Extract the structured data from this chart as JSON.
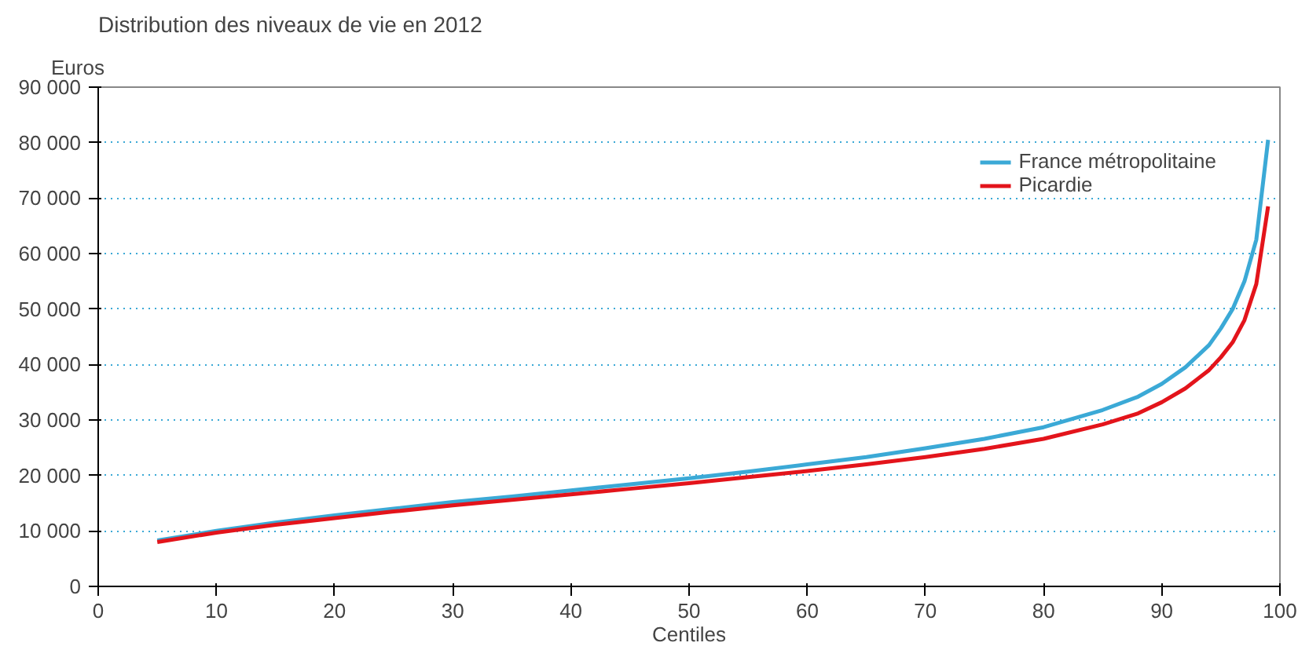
{
  "chart_data": {
    "type": "line",
    "title": "Distribution des niveaux de vie en 2012",
    "xlabel": "Centiles",
    "ylabel": "Euros",
    "x": [
      5,
      10,
      15,
      20,
      25,
      30,
      35,
      40,
      45,
      50,
      55,
      60,
      65,
      70,
      75,
      80,
      85,
      88,
      90,
      92,
      94,
      95,
      96,
      97,
      98,
      99
    ],
    "series": [
      {
        "name": "France métropolitaine",
        "color": "#3ba9d6",
        "values": [
          8300,
          10000,
          11500,
          12800,
          14000,
          15200,
          16200,
          17300,
          18400,
          19500,
          20700,
          22000,
          23300,
          24900,
          26600,
          28700,
          31800,
          34200,
          36500,
          39500,
          43500,
          46500,
          50000,
          55000,
          62500,
          80500
        ]
      },
      {
        "name": "Picardie",
        "color": "#e3141b",
        "values": [
          8000,
          9700,
          11100,
          12300,
          13500,
          14600,
          15600,
          16600,
          17600,
          18600,
          19700,
          20800,
          22000,
          23300,
          24800,
          26600,
          29200,
          31200,
          33200,
          35700,
          39000,
          41300,
          44000,
          48000,
          54500,
          68500
        ]
      }
    ],
    "xlim": [
      0,
      100
    ],
    "xticks": [
      0,
      10,
      20,
      30,
      40,
      50,
      60,
      70,
      80,
      90,
      100
    ],
    "ylim": [
      0,
      90000
    ],
    "yticks": [
      {
        "value": 0,
        "label": "0"
      },
      {
        "value": 10000,
        "label": "10 000"
      },
      {
        "value": 20000,
        "label": "20 000"
      },
      {
        "value": 30000,
        "label": "30 000"
      },
      {
        "value": 40000,
        "label": "40 000"
      },
      {
        "value": 50000,
        "label": "50 000"
      },
      {
        "value": 60000,
        "label": "60 000"
      },
      {
        "value": 70000,
        "label": "70 000"
      },
      {
        "value": 80000,
        "label": "80 000"
      },
      {
        "value": 90000,
        "label": "90 000"
      }
    ],
    "grid": "y",
    "legend": "top right",
    "line_style": "solid"
  }
}
